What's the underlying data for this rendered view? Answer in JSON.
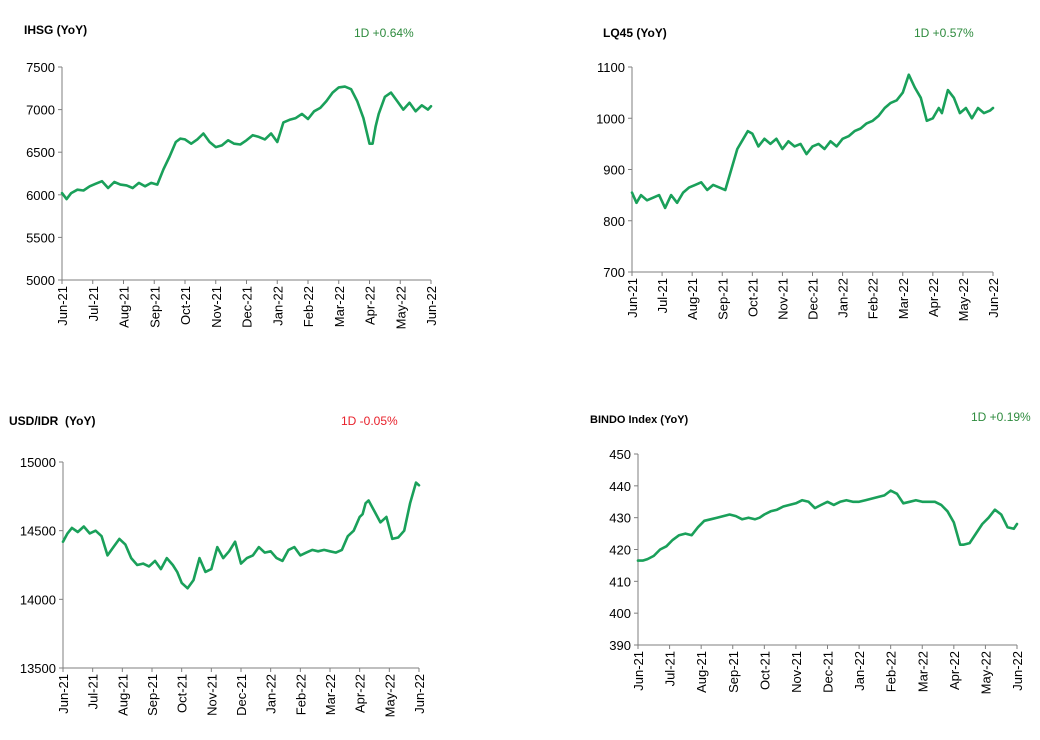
{
  "colors": {
    "line": "#1aa05a",
    "positive": "#2e8b3e",
    "negative": "#e8202a",
    "axis": "#7f7f7f"
  },
  "chart_data": [
    {
      "type": "line",
      "title": "IHSG (YoY)",
      "change": "1D +0.64%",
      "change_sign": "positive",
      "x_ticks": [
        "Jun-21",
        "Jul-21",
        "Aug-21",
        "Sep-21",
        "Oct-21",
        "Nov-21",
        "Dec-21",
        "Jan-22",
        "Feb-22",
        "Mar-22",
        "Apr-22",
        "May-22",
        "Jun-22"
      ],
      "y_ticks": [
        "5000",
        "5500",
        "6000",
        "6500",
        "7000",
        "7500"
      ],
      "ylim": [
        5000,
        7500
      ],
      "x": [
        0,
        0.15,
        0.3,
        0.5,
        0.7,
        0.9,
        1.1,
        1.3,
        1.5,
        1.7,
        1.9,
        2.1,
        2.3,
        2.5,
        2.7,
        2.9,
        3.1,
        3.3,
        3.5,
        3.7,
        3.85,
        4.0,
        4.2,
        4.4,
        4.6,
        4.8,
        5.0,
        5.2,
        5.4,
        5.6,
        5.8,
        6.0,
        6.2,
        6.4,
        6.6,
        6.8,
        7.0,
        7.2,
        7.4,
        7.6,
        7.8,
        8.0,
        8.2,
        8.4,
        8.6,
        8.8,
        9.0,
        9.2,
        9.4,
        9.6,
        9.8,
        10.0,
        10.1,
        10.2,
        10.3,
        10.5,
        10.7,
        10.9,
        11.1,
        11.3,
        11.5,
        11.7,
        11.9,
        12.0
      ],
      "values": [
        6020,
        5950,
        6020,
        6060,
        6050,
        6100,
        6130,
        6160,
        6080,
        6150,
        6120,
        6110,
        6080,
        6140,
        6100,
        6140,
        6120,
        6300,
        6450,
        6620,
        6660,
        6650,
        6600,
        6650,
        6720,
        6620,
        6560,
        6580,
        6640,
        6600,
        6590,
        6640,
        6700,
        6680,
        6650,
        6720,
        6620,
        6850,
        6880,
        6900,
        6950,
        6890,
        6980,
        7020,
        7100,
        7200,
        7260,
        7270,
        7240,
        7100,
        6900,
        6600,
        6600,
        6800,
        6950,
        7150,
        7200,
        7100,
        7000,
        7080,
        6980,
        7050,
        7000,
        7040
      ]
    },
    {
      "type": "line",
      "title": "LQ45 (YoY)",
      "change": "1D +0.57%",
      "change_sign": "positive",
      "x_ticks": [
        "Jun-21",
        "Jul-21",
        "Aug-21",
        "Sep-21",
        "Oct-21",
        "Nov-21",
        "Dec-21",
        "Jan-22",
        "Feb-22",
        "Mar-22",
        "Apr-22",
        "May-22",
        "Jun-22"
      ],
      "y_ticks": [
        "700",
        "800",
        "900",
        "1000",
        "1100"
      ],
      "ylim": [
        700,
        1100
      ],
      "x": [
        0,
        0.15,
        0.3,
        0.5,
        0.7,
        0.9,
        1.1,
        1.3,
        1.5,
        1.7,
        1.9,
        2.1,
        2.3,
        2.5,
        2.7,
        2.9,
        3.1,
        3.3,
        3.5,
        3.7,
        3.85,
        4.0,
        4.2,
        4.4,
        4.6,
        4.8,
        5.0,
        5.2,
        5.4,
        5.6,
        5.8,
        6.0,
        6.2,
        6.4,
        6.6,
        6.8,
        7.0,
        7.2,
        7.4,
        7.6,
        7.8,
        8.0,
        8.2,
        8.4,
        8.6,
        8.8,
        9.0,
        9.2,
        9.4,
        9.6,
        9.8,
        10.0,
        10.1,
        10.2,
        10.3,
        10.5,
        10.7,
        10.9,
        11.1,
        11.3,
        11.5,
        11.7,
        11.9,
        12.0
      ],
      "values": [
        855,
        835,
        850,
        840,
        845,
        850,
        825,
        850,
        835,
        855,
        865,
        870,
        875,
        860,
        870,
        865,
        860,
        900,
        940,
        960,
        975,
        970,
        945,
        960,
        950,
        960,
        940,
        955,
        945,
        950,
        930,
        945,
        950,
        940,
        955,
        945,
        960,
        965,
        975,
        980,
        990,
        995,
        1005,
        1020,
        1030,
        1035,
        1050,
        1085,
        1060,
        1040,
        995,
        1000,
        1010,
        1020,
        1010,
        1055,
        1040,
        1010,
        1020,
        1000,
        1020,
        1010,
        1015,
        1020
      ]
    },
    {
      "type": "line",
      "title": "USD/IDR  (YoY)",
      "change": "1D -0.05%",
      "change_sign": "negative",
      "x_ticks": [
        "Jun-21",
        "Jul-21",
        "Aug-21",
        "Sep-21",
        "Oct-21",
        "Nov-21",
        "Dec-21",
        "Jan-22",
        "Feb-22",
        "Mar-22",
        "Apr-22",
        "May-22",
        "Jun-22"
      ],
      "y_ticks": [
        "13500",
        "14000",
        "14500",
        "15000"
      ],
      "ylim": [
        13500,
        15000
      ],
      "x": [
        0,
        0.15,
        0.3,
        0.5,
        0.7,
        0.9,
        1.1,
        1.3,
        1.5,
        1.7,
        1.9,
        2.1,
        2.3,
        2.5,
        2.7,
        2.9,
        3.1,
        3.3,
        3.5,
        3.7,
        3.85,
        4.0,
        4.2,
        4.4,
        4.6,
        4.8,
        5.0,
        5.2,
        5.4,
        5.6,
        5.8,
        6.0,
        6.2,
        6.4,
        6.6,
        6.8,
        7.0,
        7.2,
        7.4,
        7.6,
        7.8,
        8.0,
        8.2,
        8.4,
        8.6,
        8.8,
        9.0,
        9.2,
        9.4,
        9.6,
        9.8,
        10.0,
        10.1,
        10.2,
        10.3,
        10.5,
        10.7,
        10.9,
        11.1,
        11.3,
        11.5,
        11.7,
        11.9,
        12.0
      ],
      "values": [
        14420,
        14480,
        14520,
        14490,
        14530,
        14480,
        14500,
        14460,
        14320,
        14380,
        14440,
        14400,
        14300,
        14250,
        14260,
        14240,
        14280,
        14220,
        14300,
        14250,
        14200,
        14120,
        14080,
        14140,
        14300,
        14200,
        14220,
        14380,
        14300,
        14350,
        14420,
        14260,
        14300,
        14320,
        14380,
        14340,
        14350,
        14300,
        14280,
        14360,
        14380,
        14320,
        14340,
        14360,
        14350,
        14360,
        14350,
        14340,
        14360,
        14460,
        14500,
        14600,
        14620,
        14700,
        14720,
        14640,
        14560,
        14600,
        14440,
        14450,
        14500,
        14700,
        14850,
        14830
      ]
    },
    {
      "type": "line",
      "title": "BINDO Index (YoY)",
      "change": "1D +0.19%",
      "change_sign": "positive",
      "x_ticks": [
        "Jun-21",
        "Jul-21",
        "Aug-21",
        "Sep-21",
        "Oct-21",
        "Nov-21",
        "Dec-21",
        "Jan-22",
        "Feb-22",
        "Mar-22",
        "Apr-22",
        "May-22",
        "Jun-22"
      ],
      "y_ticks": [
        "390",
        "400",
        "410",
        "420",
        "430",
        "440",
        "450"
      ],
      "ylim": [
        390,
        450
      ],
      "x": [
        0,
        0.15,
        0.3,
        0.5,
        0.7,
        0.9,
        1.1,
        1.3,
        1.5,
        1.7,
        1.9,
        2.1,
        2.3,
        2.5,
        2.7,
        2.9,
        3.1,
        3.3,
        3.5,
        3.7,
        3.85,
        4.0,
        4.2,
        4.4,
        4.6,
        4.8,
        5.0,
        5.2,
        5.4,
        5.6,
        5.8,
        6.0,
        6.2,
        6.4,
        6.6,
        6.8,
        7.0,
        7.2,
        7.4,
        7.6,
        7.8,
        8.0,
        8.2,
        8.4,
        8.6,
        8.8,
        9.0,
        9.2,
        9.4,
        9.6,
        9.8,
        10.0,
        10.1,
        10.2,
        10.3,
        10.5,
        10.7,
        10.9,
        11.1,
        11.3,
        11.5,
        11.7,
        11.9,
        12.0
      ],
      "values": [
        416.5,
        416.5,
        417,
        418,
        420,
        421,
        423,
        424.5,
        425,
        424.5,
        427,
        429,
        429.5,
        430,
        430.5,
        431,
        430.5,
        429.5,
        430,
        429.5,
        430,
        431,
        432,
        432.5,
        433.5,
        434,
        434.5,
        435.5,
        435,
        433,
        434,
        435,
        434,
        435,
        435.5,
        435,
        435,
        435.5,
        436,
        436.5,
        437,
        438.5,
        437.5,
        434.5,
        435,
        435.5,
        435,
        435,
        435,
        434,
        432,
        428.5,
        425,
        421.5,
        421.5,
        422,
        425,
        428,
        430,
        432.5,
        431,
        427,
        426.5,
        428
      ]
    }
  ]
}
